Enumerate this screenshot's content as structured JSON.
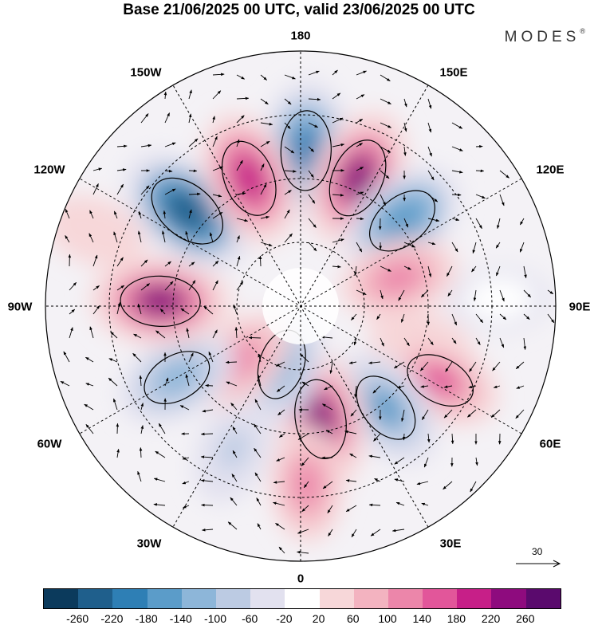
{
  "title": "Base 21/06/2025 00 UTC, valid 23/06/2025 00 UTC",
  "brand": "MODES",
  "brand_mark": "®",
  "longitude_labels": {
    "top": "180",
    "bottom": "0",
    "left": "90W",
    "right": "90E",
    "upper_left_1": "150W",
    "upper_left_2": "120W",
    "upper_right_1": "150E",
    "upper_right_2": "120E",
    "lower_left_1": "60W",
    "lower_left_2": "30W",
    "lower_right_1": "60E",
    "lower_right_2": "30E"
  },
  "reference_vector": {
    "value": "30",
    "icon": "arrow-right-icon"
  },
  "colorbar": {
    "colors": [
      "#0b3a5c",
      "#1f5f8c",
      "#2e7fb5",
      "#5b9cc9",
      "#8db6d9",
      "#bccbe3",
      "#e2e1ef",
      "#ffffff",
      "#f7d7d9",
      "#f3b3c0",
      "#ec86aa",
      "#e2569a",
      "#c71f88",
      "#8e0b7e",
      "#5a0a6d"
    ],
    "labels": [
      "-260",
      "-220",
      "-180",
      "-140",
      "-100",
      "-60",
      "-20",
      "20",
      "60",
      "100",
      "140",
      "180",
      "220",
      "260"
    ]
  },
  "anomalies": [
    {
      "lon": 178,
      "r": 0.61,
      "value": -220
    },
    {
      "lon": 156,
      "r": 0.55,
      "value": 220
    },
    {
      "lon": 130,
      "r": 0.52,
      "value": -180
    },
    {
      "lon": 106,
      "r": 0.4,
      "value": 120
    },
    {
      "lon": 72,
      "r": 0.5,
      "value": 60
    },
    {
      "lon": 62,
      "r": 0.62,
      "value": 140
    },
    {
      "lon": 40,
      "r": 0.52,
      "value": -160
    },
    {
      "lon": 10,
      "r": 0.45,
      "value": 220
    },
    {
      "lon": 2,
      "r": 0.7,
      "value": 100
    },
    {
      "lon": 342,
      "r": 0.24,
      "value": -140
    },
    {
      "lon": 335,
      "r": 0.62,
      "value": -80
    },
    {
      "lon": 312,
      "r": 0.32,
      "value": 100
    },
    {
      "lon": 300,
      "r": 0.56,
      "value": -140
    },
    {
      "lon": 268,
      "r": 0.55,
      "value": 220
    },
    {
      "lon": 230,
      "r": 0.58,
      "value": -240
    },
    {
      "lon": 202,
      "r": 0.54,
      "value": 200
    },
    {
      "lon": 92,
      "r": 0.78,
      "value": -20
    },
    {
      "lon": 250,
      "r": 0.86,
      "value": 40
    }
  ]
}
